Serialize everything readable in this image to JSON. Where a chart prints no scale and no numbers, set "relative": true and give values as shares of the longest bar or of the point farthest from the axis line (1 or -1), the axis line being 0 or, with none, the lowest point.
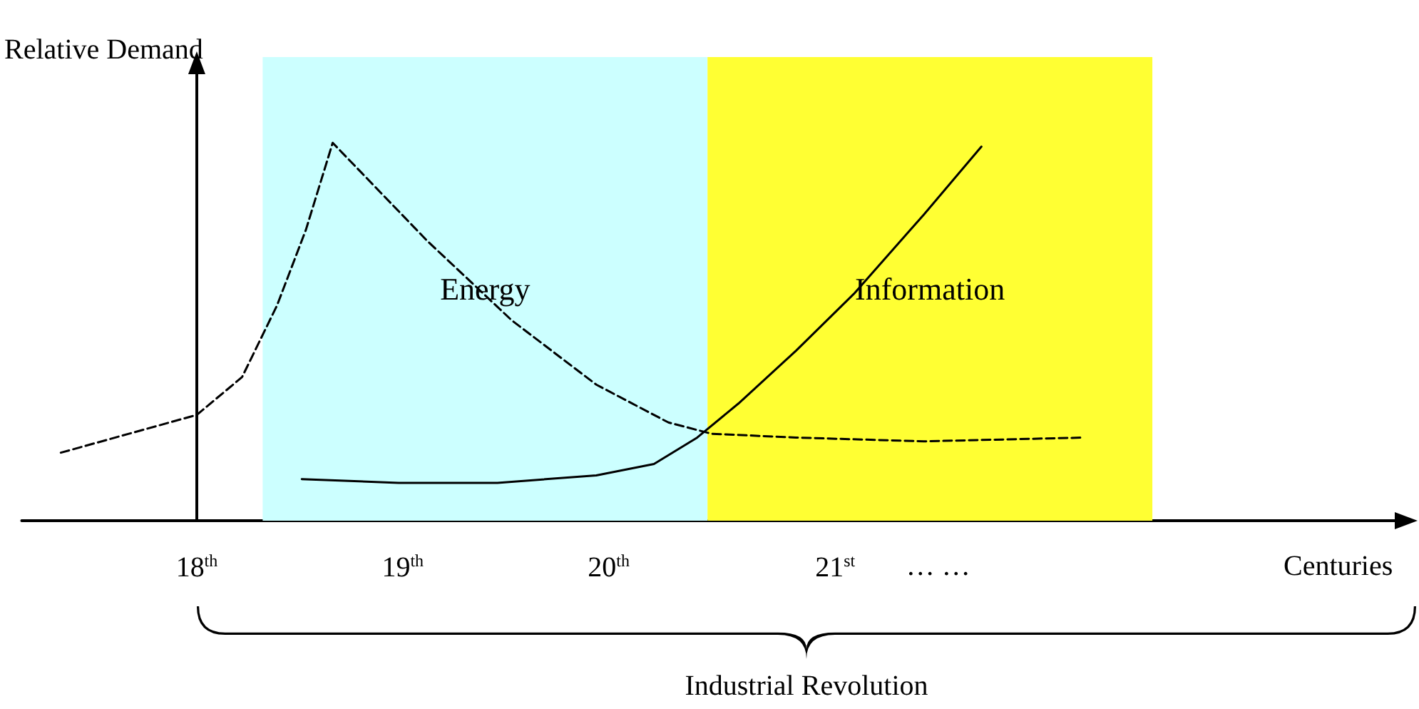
{
  "chart_data": {
    "type": "line",
    "relative": true,
    "ylabel": "Relative Demand",
    "xlabel": "Centuries",
    "xlim": [
      17.15,
      23.9
    ],
    "xticks": [
      {
        "value": 18,
        "label": "18$^{th}$"
      },
      {
        "value": 19,
        "label": "19$^{th}$"
      },
      {
        "value": 20,
        "label": "20$^{th}$"
      },
      {
        "value": 21.1,
        "label": "21$^{st}$"
      },
      {
        "value": 21.6,
        "label": "… …"
      }
    ],
    "series": [
      {
        "color": "#000000",
        "line_style": "dashed",
        "x": [
          17.34,
          17.67,
          18,
          18.22,
          18.39,
          18.53,
          18.66,
          19.12,
          19.53,
          19.94,
          20.29,
          20.5,
          20.91,
          21.53,
          22.31
        ],
        "values": [
          0.18,
          0.23,
          0.28,
          0.38,
          0.57,
          0.77,
          1.0,
          0.74,
          0.53,
          0.36,
          0.26,
          0.23,
          0.22,
          0.21,
          0.22
        ]
      },
      {
        "color": "#000000",
        "line_style": "solid",
        "x": [
          18.51,
          18.98,
          19.46,
          19.94,
          20.22,
          20.43,
          20.63,
          20.91,
          21.19,
          21.53,
          21.81
        ],
        "values": [
          0.11,
          0.1,
          0.1,
          0.12,
          0.15,
          0.22,
          0.31,
          0.45,
          0.6,
          0.81,
          0.99
        ]
      }
    ],
    "bands": [
      {
        "axis": "x",
        "from": 18.32,
        "to": 20.48,
        "label": "Energy",
        "color": "#ccffff"
      },
      {
        "axis": "x",
        "from": 20.48,
        "to": 22.64,
        "label": "Information",
        "color": "#ffff33"
      }
    ],
    "annotations": [
      "Industrial Revolution"
    ],
    "marker": "none"
  }
}
